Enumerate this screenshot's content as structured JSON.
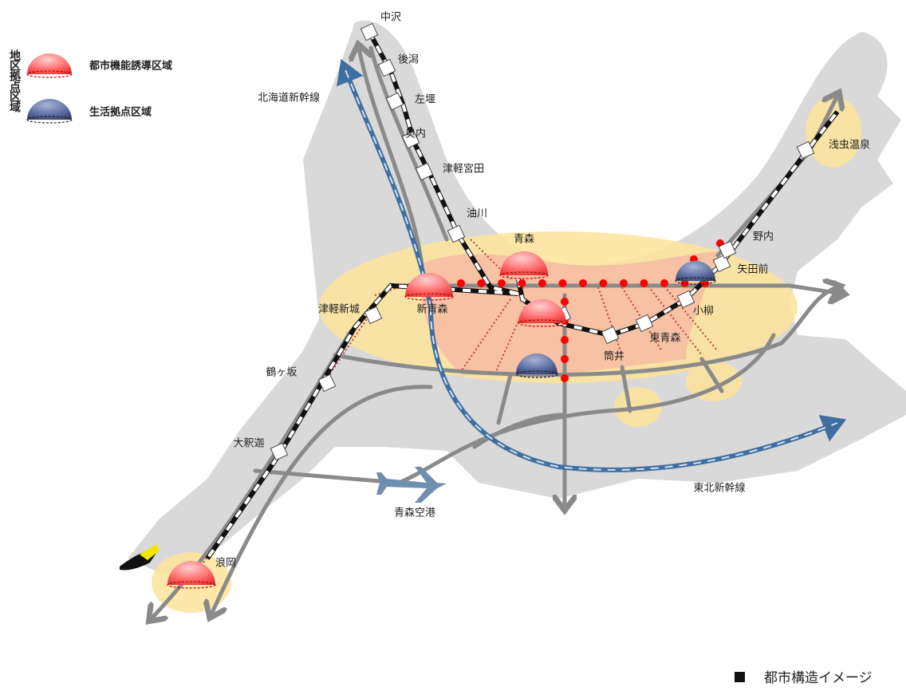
{
  "legend": {
    "title": "地区拠点区域",
    "items": [
      "都市機能誘導区域",
      "生活拠点区域"
    ]
  },
  "stations": [
    "中沢",
    "後潟",
    "左堰",
    "奥内",
    "津軽宮田",
    "油川",
    "青森",
    "新青森",
    "津軽新城",
    "鶴ヶ坂",
    "大釈迦",
    "浪岡",
    "筒井",
    "東青森",
    "小柳",
    "矢田前",
    "野内",
    "浅虫温泉"
  ],
  "lines": [
    "北海道新幹線",
    "東北新幹線"
  ],
  "airport": "青森空港",
  "caption": "都市構造イメージ"
}
